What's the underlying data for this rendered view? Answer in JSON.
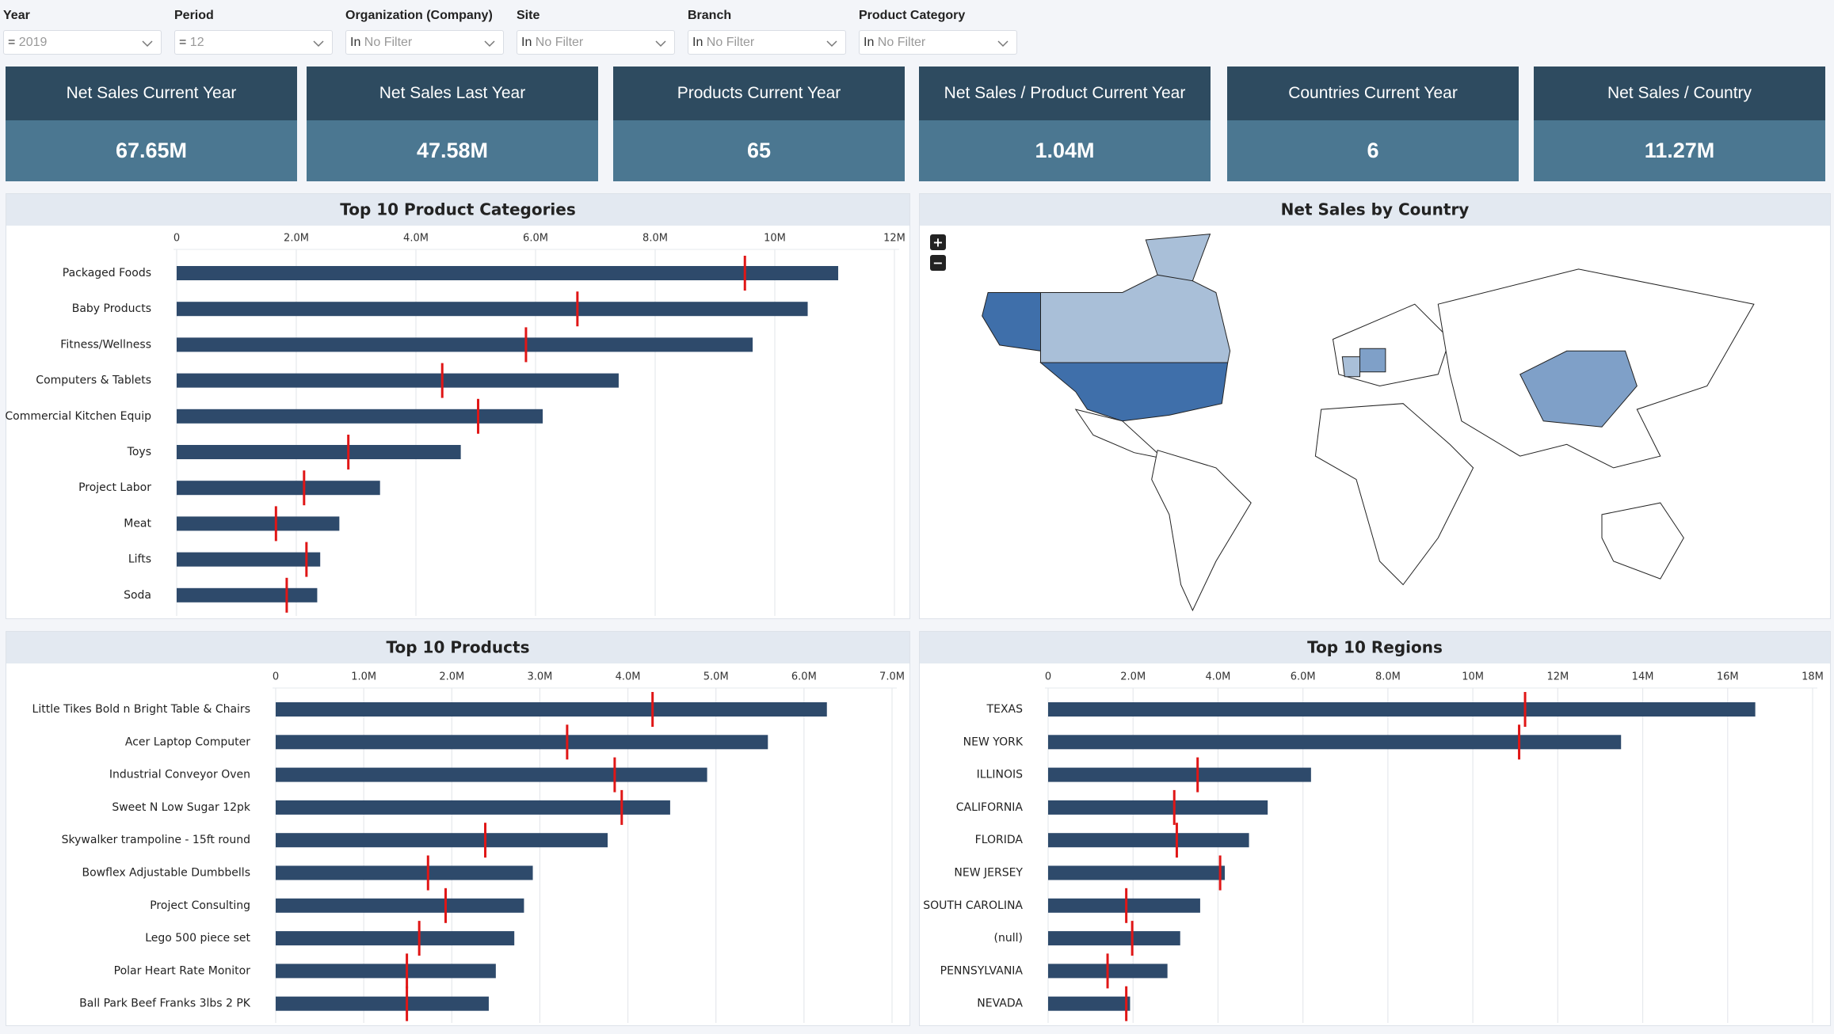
{
  "filters": [
    {
      "label": "Year",
      "operator": "=",
      "value": "2019"
    },
    {
      "label": "Period",
      "operator": "=",
      "value": "12"
    },
    {
      "label": "Organization (Company)",
      "operator": "In",
      "value": "No Filter"
    },
    {
      "label": "Site",
      "operator": "In",
      "value": "No Filter"
    },
    {
      "label": "Branch",
      "operator": "In",
      "value": "No Filter"
    },
    {
      "label": "Product Category",
      "operator": "In",
      "value": "No Filter"
    }
  ],
  "kpis": [
    {
      "title": "Net Sales Current Year",
      "value": "67.65M"
    },
    {
      "title": "Net Sales Last Year",
      "value": "47.58M"
    },
    {
      "title": "Products Current Year",
      "value": "65"
    },
    {
      "title": "Net Sales / Product Current Year",
      "value": "1.04M"
    },
    {
      "title": "Countries Current Year",
      "value": "6"
    },
    {
      "title": "Net Sales / Country",
      "value": "11.27M"
    }
  ],
  "chart_data": [
    {
      "type": "bullet",
      "title": "Top 10 Product Categories",
      "categories": [
        "Packaged Foods",
        "Baby Products",
        "Fitness/Wellness",
        "Computers & Tablets",
        "Commercial Kitchen Equip",
        "Toys",
        "Project Labor",
        "Meat",
        "Lifts",
        "Soda"
      ],
      "values": [
        11060000,
        10550000,
        9630000,
        7390000,
        6120000,
        4750000,
        3400000,
        2720000,
        2400000,
        2350000
      ],
      "targets": [
        9500000,
        6700000,
        5840000,
        4440000,
        5040000,
        2870000,
        2130000,
        1660000,
        2170000,
        1840000
      ],
      "color": "#2e4a6b",
      "target_color": "#e01616",
      "xlim": [
        0,
        12000000
      ],
      "xticks": [
        0,
        {
          "value": 2000000,
          "label": "2.0M"
        },
        {
          "value": 4000000,
          "label": "4.0M"
        },
        {
          "value": 6000000,
          "label": "6.0M"
        },
        {
          "value": 8000000,
          "label": "8.0M"
        },
        {
          "value": 10000000,
          "label": "10M"
        },
        {
          "value": 12000000,
          "label": "12M"
        }
      ],
      "grid": true
    },
    {
      "type": "map",
      "title": "Net Sales by Country"
    },
    {
      "type": "bullet",
      "title": "Top 10 Products",
      "categories": [
        "Little Tikes Bold n Bright Table & Chairs",
        "Acer Laptop Computer",
        "Industrial Conveyor Oven",
        "Sweet N Low Sugar 12pk",
        "Skywalker trampoline - 15ft round",
        "Bowflex Adjustable Dumbbells",
        "Project Consulting",
        "Lego 500 piece set",
        "Polar Heart Rate Monitor",
        "Ball Park Beef Franks 3lbs 2 PK"
      ],
      "values": [
        6260000,
        5590000,
        4900000,
        4480000,
        3770000,
        2920000,
        2820000,
        2710000,
        2500000,
        2420000
      ],
      "targets": [
        4280000,
        3310000,
        3850000,
        3930000,
        2380000,
        1730000,
        1930000,
        1630000,
        1490000,
        1490000
      ],
      "color": "#2e4a6b",
      "target_color": "#e01616",
      "xlim": [
        0,
        7000000
      ],
      "xticks": [
        0,
        {
          "value": 1000000,
          "label": "1.0M"
        },
        {
          "value": 2000000,
          "label": "2.0M"
        },
        {
          "value": 3000000,
          "label": "3.0M"
        },
        {
          "value": 4000000,
          "label": "4.0M"
        },
        {
          "value": 5000000,
          "label": "5.0M"
        },
        {
          "value": 6000000,
          "label": "6.0M"
        },
        {
          "value": 7000000,
          "label": "7.0M"
        }
      ],
      "grid": true
    },
    {
      "type": "bullet",
      "title": "Top 10 Regions",
      "categories": [
        "TEXAS",
        "NEW YORK",
        "ILLINOIS",
        "CALIFORNIA",
        "FLORIDA",
        "NEW JERSEY",
        "SOUTH CAROLINA",
        "(null)",
        "PENNSYLVANIA",
        "NEVADA"
      ],
      "values": [
        16650000,
        13490000,
        6190000,
        5170000,
        4730000,
        4160000,
        3580000,
        3110000,
        2810000,
        1930000
      ],
      "targets": [
        11230000,
        11090000,
        3520000,
        2970000,
        3030000,
        4050000,
        1840000,
        1980000,
        1400000,
        1840000
      ],
      "color": "#2e4a6b",
      "target_color": "#e01616",
      "xlim": [
        0,
        18000000
      ],
      "xticks": [
        0,
        {
          "value": 2000000,
          "label": "2.0M"
        },
        {
          "value": 4000000,
          "label": "4.0M"
        },
        {
          "value": 6000000,
          "label": "6.0M"
        },
        {
          "value": 8000000,
          "label": "8.0M"
        },
        {
          "value": 10000000,
          "label": "10M"
        },
        {
          "value": 12000000,
          "label": "12M"
        },
        {
          "value": 14000000,
          "label": "14M"
        },
        {
          "value": 16000000,
          "label": "16M"
        },
        {
          "value": 18000000,
          "label": "18M"
        }
      ],
      "grid": true
    }
  ]
}
